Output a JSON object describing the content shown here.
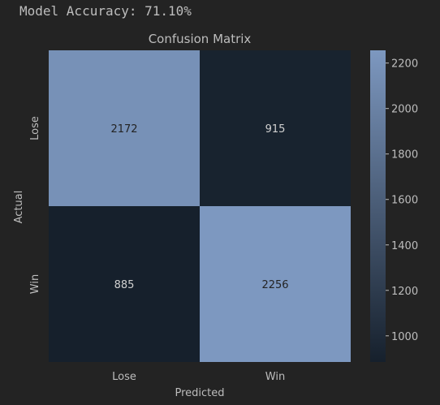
{
  "header": {
    "accuracy_text": "Model Accuracy: 71.10%"
  },
  "colors": {
    "background": "#232323",
    "text": "#bdbdbd",
    "cell_text_on_light": "#232323",
    "cell_text_on_dark": "#d0d0d0",
    "colormap_low": "#16202c",
    "colormap_high": "#7d98c0"
  },
  "chart_data": {
    "type": "heatmap",
    "title": "Confusion Matrix",
    "xlabel": "Predicted",
    "ylabel": "Actual",
    "x_categories": [
      "Lose",
      "Win"
    ],
    "y_categories": [
      "Lose",
      "Win"
    ],
    "values": [
      [
        2172,
        915
      ],
      [
        885,
        2256
      ]
    ],
    "colorbar": {
      "range": [
        885,
        2256
      ],
      "ticks": [
        1000,
        1200,
        1400,
        1600,
        1800,
        2000,
        2200
      ],
      "tick_labels": [
        "1000",
        "1200",
        "1400",
        "1600",
        "1800",
        "2000",
        "2200"
      ]
    },
    "grid": false
  }
}
